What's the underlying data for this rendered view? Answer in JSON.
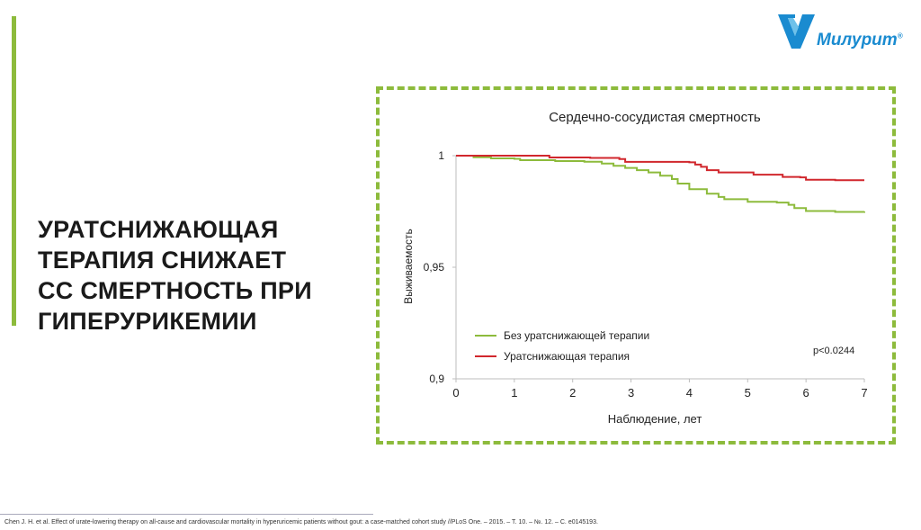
{
  "headline": "УРАТСНИЖАЮЩАЯ\nТЕРАПИЯ СНИЖАЕТ\nСС СМЕРТНОСТЬ ПРИ\nГИПЕРУРИКЕМИИ",
  "logo": {
    "text": "Милурит",
    "registered": "®",
    "icon": "checkmark-shield-icon"
  },
  "colors": {
    "accent_green": "#8dbb3c",
    "series_green": "#8dbb3c",
    "series_red": "#d1272d",
    "logo_blue": "#1a8bd0"
  },
  "chart_data": {
    "type": "line",
    "title": "Сердечно-сосудистая смертность",
    "xlabel": "Наблюдение, лет",
    "ylabel": "Выживаемость",
    "xlim": [
      0,
      7
    ],
    "ylim": [
      0.9,
      1.0
    ],
    "x_ticks": [
      "0",
      "1",
      "2",
      "3",
      "4",
      "5",
      "6",
      "7"
    ],
    "y_ticks": [
      {
        "value": 0.9,
        "label": "0,9"
      },
      {
        "value": 0.95,
        "label": "0,95"
      },
      {
        "value": 1.0,
        "label": "1"
      }
    ],
    "legend_position": "lower-center",
    "annotation": "p<0.0244",
    "series": [
      {
        "name": "Без уратснижающей терапии",
        "color": "#8dbb3c",
        "points": [
          [
            0,
            1.0
          ],
          [
            0.3,
            0.9993
          ],
          [
            0.6,
            0.9988
          ],
          [
            1.0,
            0.9986
          ],
          [
            1.1,
            0.998
          ],
          [
            1.6,
            0.998
          ],
          [
            1.7,
            0.9976
          ],
          [
            2.2,
            0.9973
          ],
          [
            2.5,
            0.9965
          ],
          [
            2.7,
            0.9955
          ],
          [
            2.9,
            0.9945
          ],
          [
            3.1,
            0.9935
          ],
          [
            3.3,
            0.9925
          ],
          [
            3.5,
            0.991
          ],
          [
            3.7,
            0.9895
          ],
          [
            3.8,
            0.9875
          ],
          [
            4.0,
            0.985
          ],
          [
            4.2,
            0.985
          ],
          [
            4.3,
            0.983
          ],
          [
            4.5,
            0.9815
          ],
          [
            4.6,
            0.9805
          ],
          [
            5.0,
            0.9793
          ],
          [
            5.5,
            0.979
          ],
          [
            5.7,
            0.978
          ],
          [
            5.8,
            0.9765
          ],
          [
            6.0,
            0.9752
          ],
          [
            6.5,
            0.9748
          ],
          [
            7.0,
            0.975
          ]
        ]
      },
      {
        "name": "Уратснижающая терапия",
        "color": "#d1272d",
        "points": [
          [
            0,
            1.0
          ],
          [
            1.5,
            1.0
          ],
          [
            1.6,
            0.9992
          ],
          [
            2.3,
            0.999
          ],
          [
            2.8,
            0.9985
          ],
          [
            2.9,
            0.9972
          ],
          [
            3.5,
            0.9972
          ],
          [
            4.0,
            0.997
          ],
          [
            4.1,
            0.996
          ],
          [
            4.2,
            0.995
          ],
          [
            4.3,
            0.9935
          ],
          [
            4.5,
            0.9925
          ],
          [
            5.0,
            0.9925
          ],
          [
            5.1,
            0.9915
          ],
          [
            5.5,
            0.9915
          ],
          [
            5.6,
            0.9905
          ],
          [
            5.9,
            0.9903
          ],
          [
            6.0,
            0.9892
          ],
          [
            6.5,
            0.989
          ],
          [
            7.0,
            0.989
          ]
        ]
      }
    ]
  },
  "footer": {
    "citation": "Chen J. H. et al. Effect of urate-lowering therapy on all-cause and cardiovascular mortality in hyperuricemic patients without gout: a case-matched cohort study //PLoS One. – 2015. – Т. 10. – №. 12. – С. e0145193."
  }
}
